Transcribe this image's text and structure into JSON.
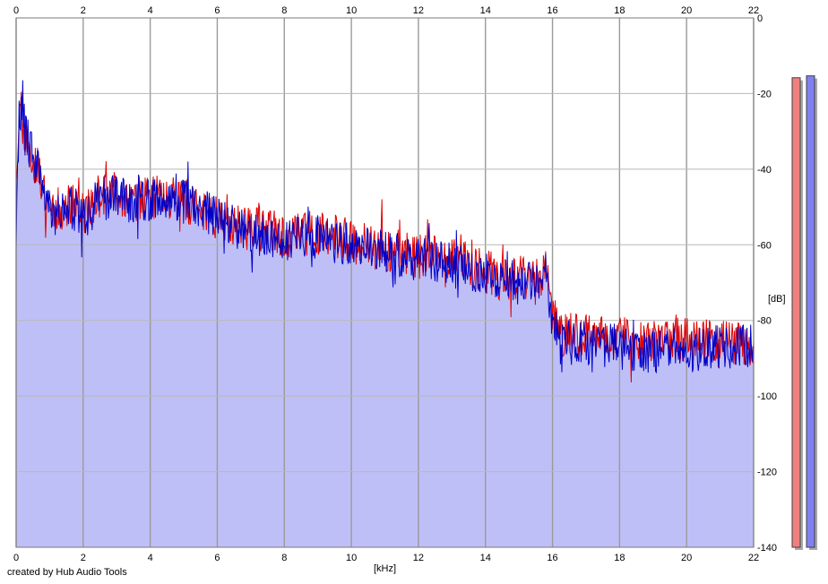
{
  "credit": "created by Hub Audio Tools",
  "colors": {
    "fill": "#bfbff7",
    "grid": "#9a9a9a",
    "channel_1": "#e00000",
    "channel_2": "#0000c8",
    "meter_1": "#f08080",
    "meter_2": "#8080f0",
    "meter_shadow": "#a8a8a8"
  },
  "meters": [
    {
      "name": "",
      "level_db": -8
    },
    {
      "name": "",
      "level_db": -7.5
    }
  ],
  "chart_data": {
    "type": "area",
    "title": "",
    "xlabel": "[kHz]",
    "ylabel": "[dB]",
    "xlim": [
      0,
      22
    ],
    "ylim": [
      -140,
      0
    ],
    "x_ticks": [
      "0",
      "2",
      "4",
      "6",
      "8",
      "10",
      "12",
      "14",
      "16",
      "18",
      "20",
      "22"
    ],
    "y_ticks": [
      "0",
      "-20",
      "-40",
      "-60",
      "-80",
      "-100",
      "-120",
      "-140"
    ],
    "grid": true,
    "x_axis_positions": [
      "top",
      "bottom"
    ],
    "y_axis_position": "right",
    "series": [
      {
        "x": [
          0,
          0.1,
          0.2,
          0.3,
          0.4,
          0.5,
          0.6,
          0.8,
          1,
          1.2,
          1.4,
          1.6,
          1.8,
          2,
          2.2,
          2.5,
          3,
          3.5,
          4,
          4.5,
          5,
          5.5,
          6,
          6.5,
          7,
          7.5,
          8,
          8.5,
          9,
          9.5,
          10,
          10.5,
          11,
          11.5,
          12,
          12.5,
          13,
          13.5,
          14,
          14.5,
          15,
          15.5,
          15.8,
          16,
          16.2,
          17,
          18,
          19,
          20,
          21,
          22
        ],
        "values": [
          -40,
          -24,
          -28,
          -31,
          -35,
          -38,
          -41,
          -44,
          -49,
          -51,
          -50,
          -49,
          -50,
          -52,
          -50,
          -47,
          -46,
          -48,
          -48,
          -47,
          -48,
          -51,
          -53,
          -54,
          -56,
          -56,
          -58,
          -57,
          -57,
          -58,
          -59,
          -60,
          -61,
          -62,
          -63,
          -63,
          -64,
          -65,
          -67,
          -69,
          -69,
          -68,
          -67,
          -78,
          -84,
          -84,
          -85,
          -86,
          -85,
          -86,
          -86
        ]
      },
      {
        "x": [
          0,
          0.1,
          0.2,
          0.3,
          0.4,
          0.5,
          0.6,
          0.8,
          1,
          1.2,
          1.4,
          1.6,
          1.8,
          2,
          2.2,
          2.5,
          3,
          3.5,
          4,
          4.5,
          5,
          5.5,
          6,
          6.5,
          7,
          7.5,
          8,
          8.5,
          9,
          9.5,
          10,
          10.5,
          11,
          11.5,
          12,
          12.5,
          13,
          13.5,
          14,
          14.5,
          15,
          15.5,
          15.8,
          16,
          16.2,
          17,
          18,
          19,
          20,
          21,
          22
        ],
        "values": [
          -58,
          -23,
          -27,
          -30,
          -34,
          -37,
          -40,
          -43,
          -50,
          -52,
          -51,
          -50,
          -51,
          -53,
          -51,
          -48,
          -47,
          -49,
          -48,
          -47,
          -48,
          -50,
          -53,
          -55,
          -57,
          -57,
          -59,
          -58,
          -58,
          -59,
          -60,
          -61,
          -62,
          -63,
          -64,
          -64,
          -65,
          -66,
          -68,
          -70,
          -70,
          -69,
          -68,
          -80,
          -86,
          -86,
          -87,
          -88,
          -88,
          -87,
          -87
        ]
      }
    ]
  }
}
